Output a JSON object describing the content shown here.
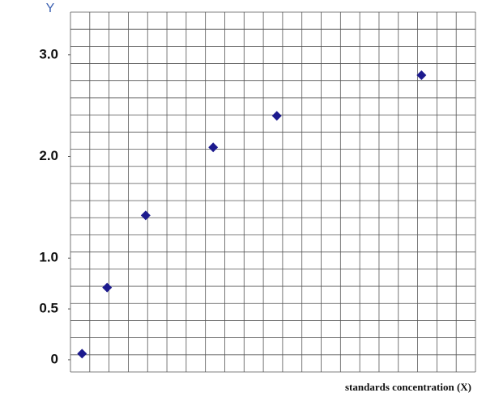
{
  "chart_data": {
    "type": "scatter",
    "y_label": "Y",
    "x_label": "standards concentration (X)",
    "series": [
      {
        "color": "#1c1a8e",
        "x": [
          0.6,
          1.9,
          3.9,
          7.4,
          10.7,
          18.2
        ],
        "values": [
          0.06,
          0.71,
          1.42,
          2.09,
          2.4,
          2.8
        ]
      }
    ],
    "xlim": [
      0,
      21
    ],
    "ylim": [
      -0.12,
      3.42
    ],
    "yticks": [
      {
        "value": 0,
        "label": "0"
      },
      {
        "value": 0.5,
        "label": "0.5"
      },
      {
        "value": 1,
        "label": "1.0"
      },
      {
        "value": 2,
        "label": "2.0"
      },
      {
        "value": 3,
        "label": "3.0"
      }
    ],
    "grid": true
  }
}
